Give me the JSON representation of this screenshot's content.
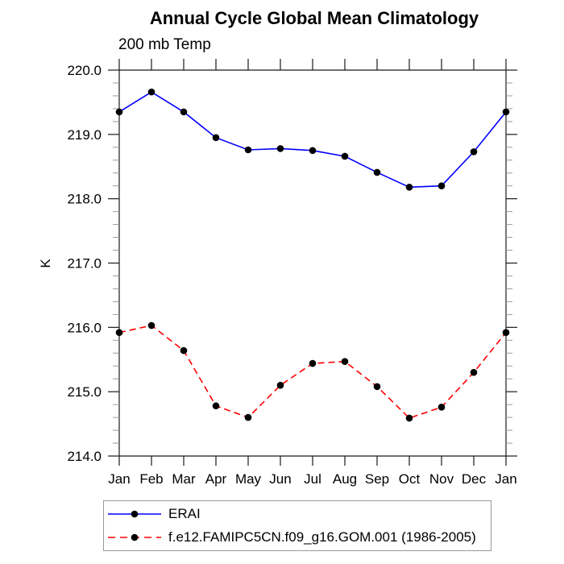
{
  "chart_data": {
    "type": "line",
    "title": "Annual Cycle Global Mean Climatology",
    "subtitle": "200 mb Temp",
    "ylabel": "K",
    "xlabel": "",
    "categories": [
      "Jan",
      "Feb",
      "Mar",
      "Apr",
      "May",
      "Jun",
      "Jul",
      "Aug",
      "Sep",
      "Oct",
      "Nov",
      "Dec",
      "Jan"
    ],
    "series": [
      {
        "name": "ERAI",
        "color": "#0000ff",
        "line_style": "solid",
        "marker": "filled-circle",
        "marker_color": "#000000",
        "values": [
          219.35,
          219.66,
          219.35,
          218.95,
          218.76,
          218.78,
          218.75,
          218.66,
          218.41,
          218.18,
          218.2,
          218.73,
          219.35
        ]
      },
      {
        "name": "f.e12.FAMIPC5CN.f09_g16.GOM.001 (1986-2005)",
        "color": "#ff0000",
        "line_style": "dashed",
        "marker": "filled-circle",
        "marker_color": "#000000",
        "values": [
          215.92,
          216.03,
          215.64,
          214.78,
          214.6,
          215.1,
          215.44,
          215.47,
          215.08,
          214.59,
          214.76,
          215.3,
          215.92
        ]
      }
    ],
    "ylim": [
      214.0,
      220.0
    ],
    "y_major_step": 1.0,
    "y_minor_step": 0.2,
    "y_tick_labels": [
      "220.0",
      "219.0",
      "218.0",
      "217.0",
      "216.0",
      "215.0",
      "214.0"
    ],
    "grid": false,
    "legend_position": "below-plot-left-box",
    "axis_color": "#1a1a1a",
    "minor_tick_color": "#999999"
  }
}
